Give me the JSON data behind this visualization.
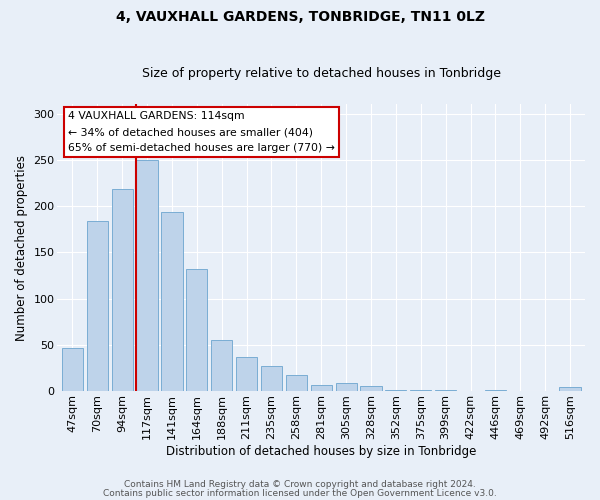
{
  "title": "4, VAUXHALL GARDENS, TONBRIDGE, TN11 0LZ",
  "subtitle": "Size of property relative to detached houses in Tonbridge",
  "xlabel": "Distribution of detached houses by size in Tonbridge",
  "ylabel": "Number of detached properties",
  "categories": [
    "47sqm",
    "70sqm",
    "94sqm",
    "117sqm",
    "141sqm",
    "164sqm",
    "188sqm",
    "211sqm",
    "235sqm",
    "258sqm",
    "281sqm",
    "305sqm",
    "328sqm",
    "352sqm",
    "375sqm",
    "399sqm",
    "422sqm",
    "446sqm",
    "469sqm",
    "492sqm",
    "516sqm"
  ],
  "values": [
    46,
    184,
    218,
    250,
    194,
    132,
    55,
    37,
    27,
    17,
    6,
    9,
    5,
    1,
    1,
    1,
    0,
    1,
    0,
    0,
    4
  ],
  "bar_color": "#bed3ea",
  "bar_edge_color": "#7aadd4",
  "background_color": "#e8eff8",
  "grid_color": "#ffffff",
  "red_line_index": 3,
  "annotation_title": "4 VAUXHALL GARDENS: 114sqm",
  "annotation_line1": "← 34% of detached houses are smaller (404)",
  "annotation_line2": "65% of semi-detached houses are larger (770) →",
  "annotation_box_facecolor": "#ffffff",
  "annotation_box_edgecolor": "#cc0000",
  "red_line_color": "#cc0000",
  "ylim": [
    0,
    310
  ],
  "yticks": [
    0,
    50,
    100,
    150,
    200,
    250,
    300
  ],
  "title_fontsize": 10,
  "subtitle_fontsize": 9,
  "xlabel_fontsize": 8.5,
  "ylabel_fontsize": 8.5,
  "tick_fontsize": 8,
  "footnote1": "Contains HM Land Registry data © Crown copyright and database right 2024.",
  "footnote2": "Contains public sector information licensed under the Open Government Licence v3.0.",
  "footnote_fontsize": 6.5
}
